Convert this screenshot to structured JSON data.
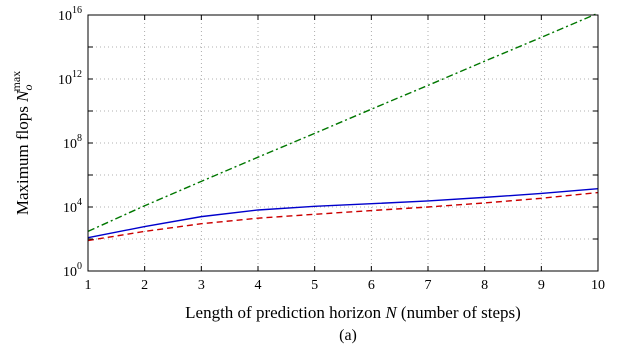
{
  "chart_data": {
    "type": "line",
    "xlabel": "Length of prediction horizon N (number of steps)",
    "ylabel": "Maximum flops N_o^max",
    "caption": "(a)",
    "x": [
      1,
      2,
      3,
      4,
      5,
      6,
      7,
      8,
      9,
      10
    ],
    "xlim": [
      1,
      10
    ],
    "ylim": [
      1,
      1e+16
    ],
    "yscale": "log",
    "grid": true,
    "x_ticks": [
      "1",
      "2",
      "3",
      "4",
      "5",
      "6",
      "7",
      "8",
      "9",
      "10"
    ],
    "y_ticks": [
      {
        "base": "10",
        "exp": "0",
        "value": 1
      },
      {
        "base": "10",
        "exp": "4",
        "value": 10000
      },
      {
        "base": "10",
        "exp": "8",
        "value": 100000000
      },
      {
        "base": "10",
        "exp": "12",
        "value": 1000000000000
      },
      {
        "base": "10",
        "exp": "16",
        "value": 10000000000000000
      }
    ],
    "series": [
      {
        "color": "#0000cc",
        "style": "solid",
        "values": [
          120,
          600,
          2500,
          6500,
          11000,
          16000,
          24000,
          40000,
          70000,
          140000
        ]
      },
      {
        "color": "#cc0000",
        "style": "dashed",
        "values": [
          80,
          300,
          900,
          2000,
          3500,
          6000,
          10000,
          18000,
          35000,
          80000
        ]
      },
      {
        "color": "#007700",
        "style": "dashdot",
        "values": [
          300,
          12000,
          400000,
          13000000.0,
          400000000.0,
          13000000000.0,
          400000000000.0,
          13000000000000.0,
          400000000000000.0,
          1.3e+16
        ]
      }
    ]
  }
}
